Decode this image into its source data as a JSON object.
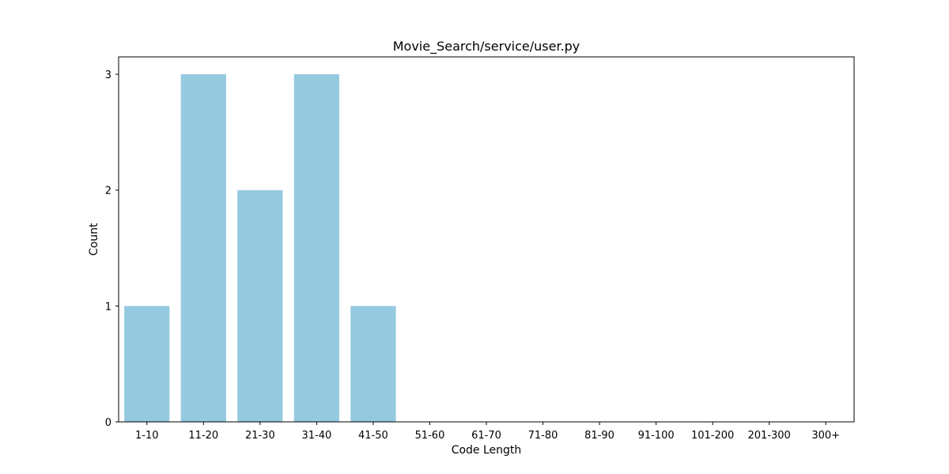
{
  "chart_data": {
    "type": "bar",
    "title": "Movie_Search/service/user.py",
    "xlabel": "Code Length",
    "ylabel": "Count",
    "categories": [
      "1-10",
      "11-20",
      "21-30",
      "31-40",
      "41-50",
      "51-60",
      "61-70",
      "71-80",
      "81-90",
      "91-100",
      "101-200",
      "201-300",
      "300+"
    ],
    "values": [
      1,
      3,
      2,
      3,
      1,
      0,
      0,
      0,
      0,
      0,
      0,
      0,
      0
    ],
    "yticks": [
      "0",
      "1",
      "2",
      "3"
    ],
    "ylim": [
      0,
      3.15
    ],
    "grid": false,
    "legend": "none",
    "bar_color": "#95c9df",
    "axis_color": "#000000"
  }
}
